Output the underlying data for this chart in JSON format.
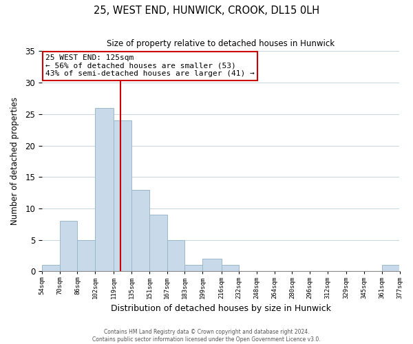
{
  "title": "25, WEST END, HUNWICK, CROOK, DL15 0LH",
  "subtitle": "Size of property relative to detached houses in Hunwick",
  "xlabel": "Distribution of detached houses by size in Hunwick",
  "ylabel": "Number of detached properties",
  "bar_color": "#c8daea",
  "bar_edgecolor": "#9ab8cc",
  "vline_x": 125,
  "vline_color": "#cc0000",
  "annotation_title": "25 WEST END: 125sqm",
  "annotation_line1": "← 56% of detached houses are smaller (53)",
  "annotation_line2": "43% of semi-detached houses are larger (41) →",
  "annotation_box_edgecolor": "#cc0000",
  "bin_edges": [
    54,
    70,
    86,
    102,
    119,
    135,
    151,
    167,
    183,
    199,
    216,
    232,
    248,
    264,
    280,
    296,
    312,
    329,
    345,
    361,
    377
  ],
  "bin_counts": [
    1,
    8,
    5,
    26,
    24,
    13,
    9,
    5,
    1,
    2,
    1,
    0,
    0,
    0,
    0,
    0,
    0,
    0,
    0,
    1
  ],
  "yticks": [
    0,
    5,
    10,
    15,
    20,
    25,
    30,
    35
  ],
  "ylim": [
    0,
    35
  ],
  "xlim": [
    54,
    377
  ],
  "footer_line1": "Contains HM Land Registry data © Crown copyright and database right 2024.",
  "footer_line2": "Contains public sector information licensed under the Open Government Licence v3.0.",
  "background_color": "#ffffff",
  "grid_color": "#ccd8e0"
}
